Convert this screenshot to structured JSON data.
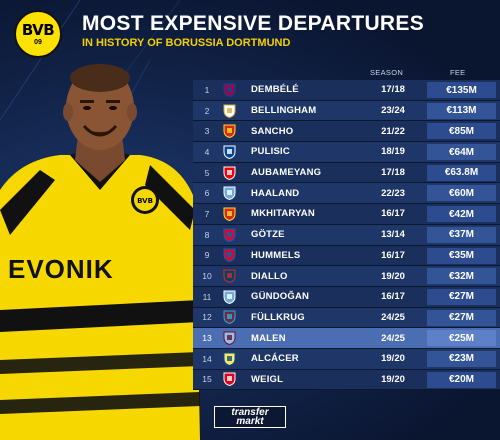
{
  "header": {
    "title": "MOST EXPENSIVE DEPARTURES",
    "subtitle": "IN HISTORY OF BORUSSIA DORTMUND"
  },
  "logo": {
    "main": "BVB",
    "sub": "09"
  },
  "player_shirt": {
    "sponsor": "EVONIK",
    "badge": "BVB",
    "badge_sub": "09"
  },
  "columns": {
    "season": "SEASON",
    "fee": "FEE"
  },
  "colors": {
    "accent_yellow": "#fde100",
    "row_dark": "#1a2f5c",
    "row_highlight": "#4b6db1"
  },
  "rows": [
    {
      "rank": "1",
      "name": "DEMBÉLÉ",
      "season": "17/18",
      "fee": "€135M",
      "club_icon": "barcelona-crest-icon"
    },
    {
      "rank": "2",
      "name": "BELLINGHAM",
      "season": "23/24",
      "fee": "€113M",
      "club_icon": "real-madrid-crest-icon"
    },
    {
      "rank": "3",
      "name": "SANCHO",
      "season": "21/22",
      "fee": "€85M",
      "club_icon": "man-united-crest-icon"
    },
    {
      "rank": "4",
      "name": "PULISIC",
      "season": "18/19",
      "fee": "€64M",
      "club_icon": "chelsea-crest-icon"
    },
    {
      "rank": "5",
      "name": "AUBAMEYANG",
      "season": "17/18",
      "fee": "€63.8M",
      "club_icon": "arsenal-crest-icon"
    },
    {
      "rank": "6",
      "name": "HAALAND",
      "season": "22/23",
      "fee": "€60M",
      "club_icon": "man-city-crest-icon"
    },
    {
      "rank": "7",
      "name": "MKHITARYAN",
      "season": "16/17",
      "fee": "€42M",
      "club_icon": "man-united-crest-icon"
    },
    {
      "rank": "8",
      "name": "GÖTZE",
      "season": "13/14",
      "fee": "€37M",
      "club_icon": "bayern-crest-icon"
    },
    {
      "rank": "9",
      "name": "HUMMELS",
      "season": "16/17",
      "fee": "€35M",
      "club_icon": "bayern-crest-icon"
    },
    {
      "rank": "10",
      "name": "DIALLO",
      "season": "19/20",
      "fee": "€32M",
      "club_icon": "psg-crest-icon"
    },
    {
      "rank": "11",
      "name": "GÜNDOĞAN",
      "season": "16/17",
      "fee": "€27M",
      "club_icon": "man-city-crest-icon"
    },
    {
      "rank": "12",
      "name": "FÜLLKRUG",
      "season": "24/25",
      "fee": "€27M",
      "club_icon": "west-ham-crest-icon"
    },
    {
      "rank": "13",
      "name": "MALEN",
      "season": "24/25",
      "fee": "€25M",
      "club_icon": "aston-villa-crest-icon",
      "highlight": true
    },
    {
      "rank": "14",
      "name": "ALCÁCER",
      "season": "19/20",
      "fee": "€23M",
      "club_icon": "villarreal-crest-icon"
    },
    {
      "rank": "15",
      "name": "WEIGL",
      "season": "19/20",
      "fee": "€20M",
      "club_icon": "benfica-crest-icon"
    }
  ],
  "footer": {
    "brand_line1": "transfer",
    "brand_line2": "markt"
  }
}
